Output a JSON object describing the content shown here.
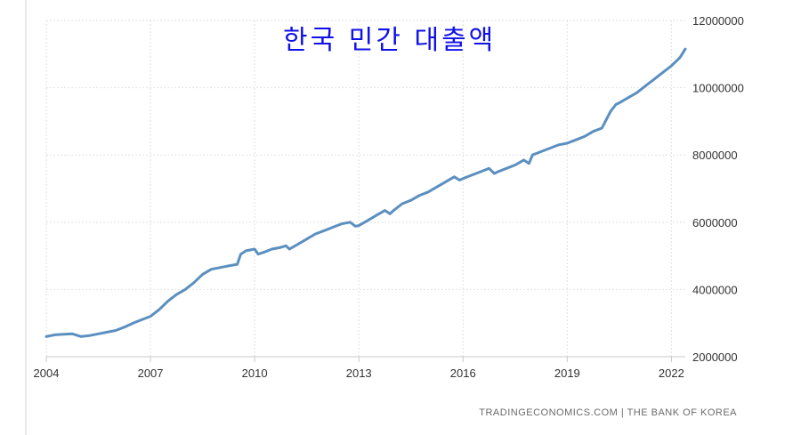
{
  "chart_data": {
    "type": "line",
    "title": "한국 민간 대출액",
    "source": "TRADINGECONOMICS.COM | THE BANK OF KOREA",
    "xlabel": "",
    "ylabel": "",
    "x_ticks": [
      "2004",
      "2007",
      "2010",
      "2013",
      "2016",
      "2019",
      "2022"
    ],
    "y_ticks": [
      "2000000",
      "4000000",
      "6000000",
      "8000000",
      "10000000",
      "12000000"
    ],
    "ylim": [
      2000000,
      12000000
    ],
    "xlim": [
      2004.0,
      2022.4
    ],
    "grid": true,
    "line_color": "#5b8fc0",
    "series": [
      {
        "x": [
          2004.0,
          2004.25,
          2004.5,
          2004.75,
          2005.0,
          2005.25,
          2005.5,
          2005.75,
          2006.0,
          2006.25,
          2006.5,
          2006.75,
          2007.0,
          2007.25,
          2007.5,
          2007.75,
          2008.0,
          2008.25,
          2008.5,
          2008.75,
          2009.0,
          2009.25,
          2009.5,
          2009.6,
          2009.75,
          2010.0,
          2010.1,
          2010.25,
          2010.5,
          2010.75,
          2010.9,
          2011.0,
          2011.25,
          2011.5,
          2011.75,
          2012.0,
          2012.25,
          2012.5,
          2012.75,
          2012.9,
          2013.0,
          2013.25,
          2013.5,
          2013.75,
          2013.9,
          2014.0,
          2014.25,
          2014.5,
          2014.75,
          2015.0,
          2015.25,
          2015.5,
          2015.75,
          2015.9,
          2016.0,
          2016.25,
          2016.5,
          2016.75,
          2016.9,
          2017.0,
          2017.25,
          2017.5,
          2017.75,
          2017.9,
          2018.0,
          2018.25,
          2018.5,
          2018.75,
          2019.0,
          2019.25,
          2019.5,
          2019.75,
          2020.0,
          2020.1,
          2020.25,
          2020.4,
          2020.5,
          2020.75,
          2021.0,
          2021.25,
          2021.5,
          2021.75,
          2022.0,
          2022.25,
          2022.4
        ],
        "y": [
          2600000,
          2650000,
          2670000,
          2680000,
          2600000,
          2630000,
          2680000,
          2730000,
          2780000,
          2880000,
          3000000,
          3100000,
          3200000,
          3400000,
          3650000,
          3850000,
          4000000,
          4200000,
          4450000,
          4600000,
          4650000,
          4700000,
          4750000,
          5050000,
          5150000,
          5200000,
          5050000,
          5100000,
          5200000,
          5250000,
          5300000,
          5200000,
          5350000,
          5500000,
          5650000,
          5750000,
          5850000,
          5950000,
          6000000,
          5880000,
          5900000,
          6050000,
          6200000,
          6350000,
          6250000,
          6350000,
          6550000,
          6650000,
          6800000,
          6900000,
          7050000,
          7200000,
          7350000,
          7250000,
          7300000,
          7400000,
          7500000,
          7600000,
          7450000,
          7500000,
          7600000,
          7700000,
          7850000,
          7750000,
          8000000,
          8100000,
          8200000,
          8300000,
          8350000,
          8450000,
          8550000,
          8700000,
          8800000,
          9000000,
          9300000,
          9500000,
          9550000,
          9700000,
          9850000,
          10050000,
          10250000,
          10450000,
          10650000,
          10900000,
          11150000
        ]
      }
    ]
  }
}
